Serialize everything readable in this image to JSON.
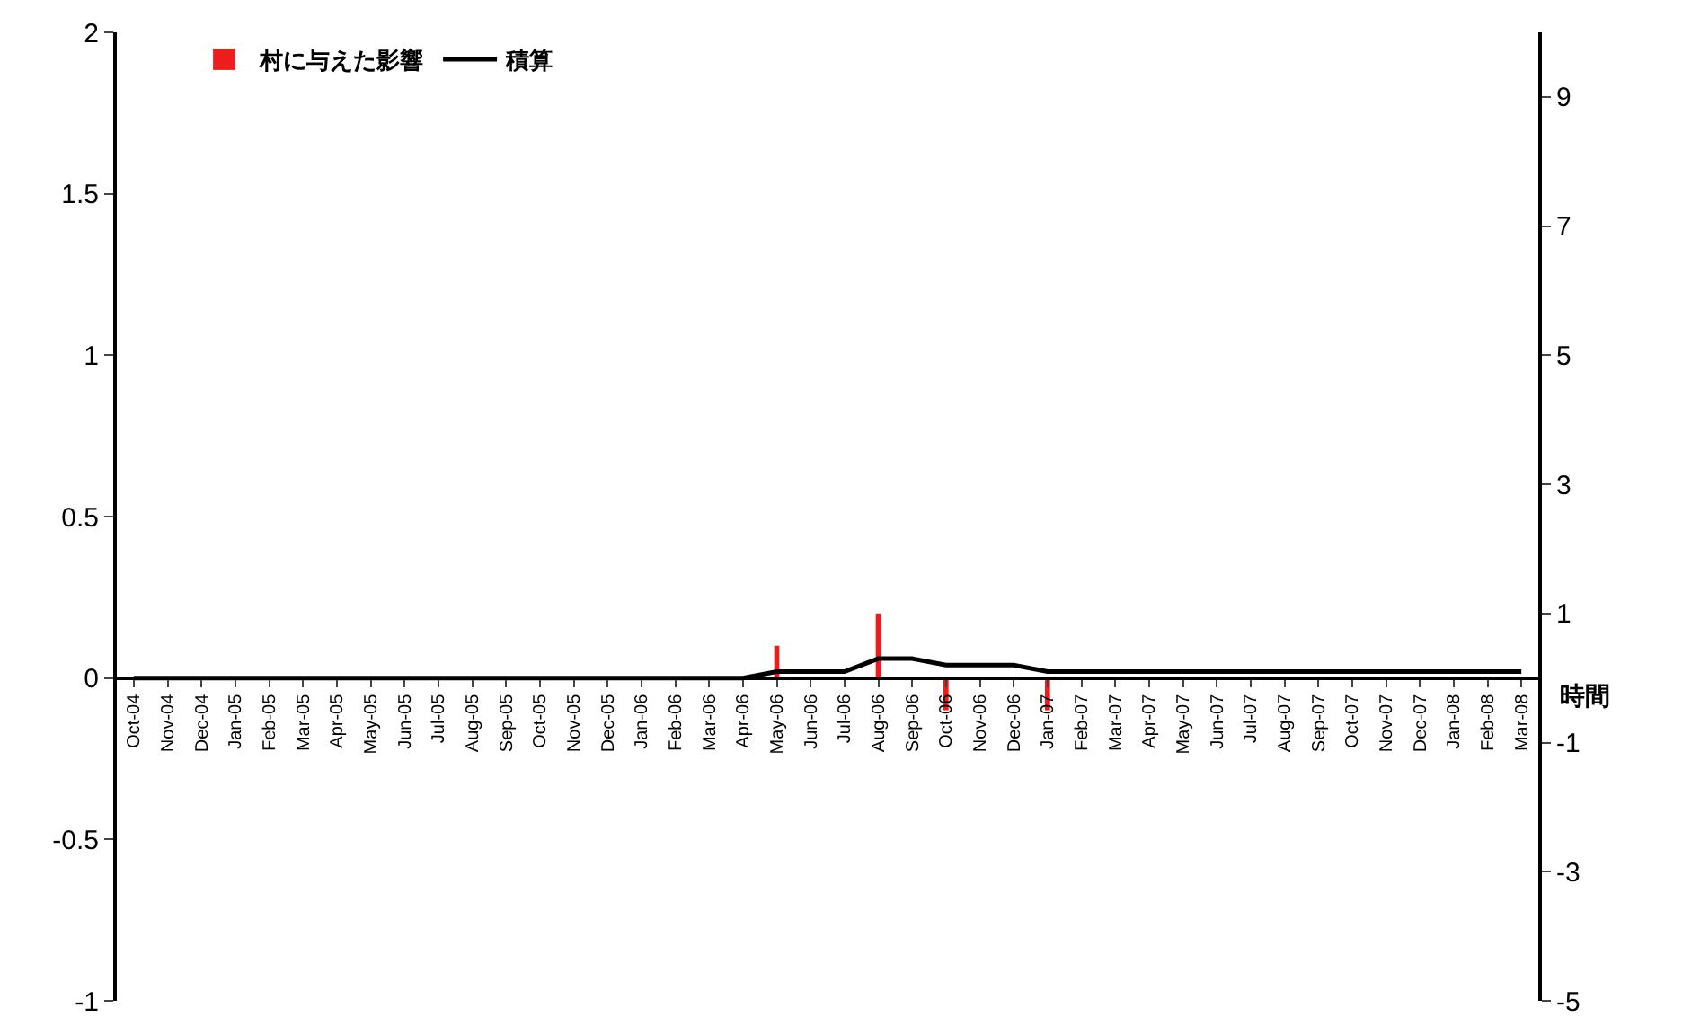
{
  "chart_data": {
    "type": "bar",
    "y2label": "時間",
    "categories": [
      "Oct-04",
      "Nov-04",
      "Dec-04",
      "Jan-05",
      "Feb-05",
      "Mar-05",
      "Apr-05",
      "May-05",
      "Jun-05",
      "Jul-05",
      "Aug-05",
      "Sep-05",
      "Oct-05",
      "Nov-05",
      "Dec-05",
      "Jan-06",
      "Feb-06",
      "Mar-06",
      "Apr-06",
      "May-06",
      "Jun-06",
      "Jul-06",
      "Aug-06",
      "Sep-06",
      "Oct-06",
      "Nov-06",
      "Dec-06",
      "Jan-07",
      "Feb-07",
      "Mar-07",
      "Apr-07",
      "May-07",
      "Jun-07",
      "Jul-07",
      "Aug-07",
      "Sep-07",
      "Oct-07",
      "Nov-07",
      "Dec-07",
      "Jan-08",
      "Feb-08",
      "Mar-08"
    ],
    "series": [
      {
        "name": "村に与えた影響",
        "color": "#ee1c1c",
        "values": [
          null,
          null,
          null,
          null,
          null,
          null,
          null,
          null,
          null,
          null,
          null,
          null,
          null,
          null,
          null,
          null,
          null,
          null,
          null,
          0.1,
          null,
          null,
          0.2,
          null,
          -0.1,
          null,
          null,
          -0.1,
          null,
          null,
          null,
          null,
          null,
          null,
          null,
          null,
          null,
          null,
          null,
          null,
          null,
          null
        ]
      },
      {
        "name": "積算",
        "type": "line",
        "axis": "y2",
        "color": "#000000",
        "values": [
          0,
          0,
          0,
          0,
          0,
          0,
          0,
          0,
          0,
          0,
          0,
          0,
          0,
          0,
          0,
          0,
          0,
          0,
          0,
          0.1,
          0.1,
          0.1,
          0.3,
          0.3,
          0.2,
          0.2,
          0.2,
          0.1,
          0.1,
          0.1,
          0.1,
          0.1,
          0.1,
          0.1,
          0.1,
          0.1,
          0.1,
          0.1,
          0.1,
          0.1,
          0.1,
          0.1
        ]
      }
    ],
    "ylim": [
      -1,
      2
    ],
    "yticks": [
      -1,
      -0.5,
      0,
      0.5,
      1,
      1.5,
      2
    ],
    "y2lim": [
      -5,
      10
    ],
    "y2ticks": [
      -5,
      -3,
      -1,
      1,
      3,
      5,
      7,
      9
    ],
    "grid": false,
    "legend": "top left",
    "marker": "none",
    "line_style": "solid"
  }
}
